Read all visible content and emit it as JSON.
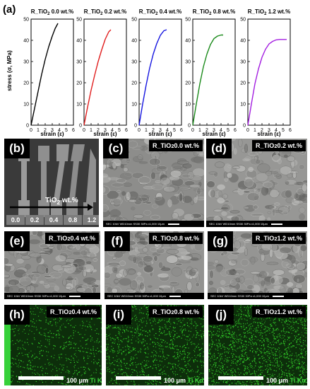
{
  "figure_label_a": "(a)",
  "chart_data": {
    "type": "line",
    "ylabel_main": "stress (σ",
    "ylabel_unit": ", MPa)",
    "xlabel": "strain (ε)",
    "xticks": [
      0,
      1,
      2,
      3,
      4,
      5,
      6
    ],
    "yticks": [
      0,
      10,
      20,
      30,
      40,
      50
    ],
    "xlim": [
      0,
      6
    ],
    "ylim": [
      0,
      50
    ],
    "grid": false,
    "series": [
      {
        "title_prefix": "R_TiO",
        "title_sub": "2",
        "title_suffix": " 0.0 wt.%",
        "color": "#000000",
        "x": [
          0,
          0.5,
          1.0,
          1.5,
          2.0,
          2.5,
          3.0,
          3.4,
          3.8
        ],
        "y": [
          0,
          8,
          16,
          24,
          31,
          37,
          42,
          45.5,
          48
        ]
      },
      {
        "title_prefix": "R_TiO",
        "title_sub": "2",
        "title_suffix": " 0.2 wt.%",
        "color": "#e01d1d",
        "x": [
          0,
          0.5,
          1.0,
          1.5,
          2.0,
          2.5,
          3.0,
          3.5,
          3.8
        ],
        "y": [
          0,
          8.5,
          16.5,
          23.5,
          30,
          35.5,
          40.5,
          44,
          45
        ]
      },
      {
        "title_prefix": "R_TiO",
        "title_sub": "2",
        "title_suffix": " 0.4 wt.%",
        "color": "#1515e0",
        "x": [
          0,
          0.5,
          1.0,
          1.5,
          2.0,
          2.5,
          3.0,
          3.5,
          3.9
        ],
        "y": [
          0,
          10,
          19,
          27,
          33.5,
          38.5,
          42.3,
          44.5,
          45
        ]
      },
      {
        "title_prefix": "R_TiO",
        "title_sub": "2",
        "title_suffix": " 0.8 wt.%",
        "color": "#1a8a1a",
        "x": [
          0,
          0.5,
          1.0,
          1.5,
          2.0,
          2.5,
          3.0,
          3.5,
          4.0,
          4.3
        ],
        "y": [
          0,
          10,
          19.5,
          27.5,
          33.5,
          38,
          40.8,
          42,
          42.5,
          42.5
        ]
      },
      {
        "title_prefix": "R_TiO",
        "title_sub": "2",
        "title_suffix": " 1.2 wt.%",
        "color": "#a31ee0",
        "x": [
          0,
          0.5,
          1.0,
          1.5,
          2.0,
          2.5,
          3.0,
          3.5,
          4.0,
          4.5,
          5.0,
          5.5
        ],
        "y": [
          0,
          10,
          19.5,
          26.5,
          32,
          35.8,
          38.3,
          39.5,
          40.2,
          40.4,
          40.4,
          40.4
        ]
      }
    ]
  },
  "photo_panel": {
    "label": "(b)",
    "tio2_text": "TiO",
    "tio2_sub": "2",
    "tio2_suffix": " wt.%",
    "samples": [
      "0.0",
      "0.2",
      "0.4",
      "0.8",
      "1.2"
    ]
  },
  "sem_panels": [
    {
      "label": "(c)",
      "title_prefix": "R_TiO",
      "title_sub": "2",
      "title_suffix": " 0.0 wt.%",
      "info": "SEC 10kV  WD10mm SS30  30Pa  x1,000   10μm",
      "base": "#8d8d8b"
    },
    {
      "label": "(d)",
      "title_prefix": "R_TiO",
      "title_sub": "2",
      "title_suffix": " 0.2 wt.%",
      "info": "SEC 10kV  WD10mm SS30  30Pa  x1,000   10μm",
      "base": "#979795"
    },
    {
      "label": "(e)",
      "title_prefix": "R_TiO",
      "title_sub": "2",
      "title_suffix": " 0.4 wt.%",
      "info": "SEC 10kV  WD10mm SS30  30Pa  x1,000   10μm",
      "base": "#8f8f8d"
    },
    {
      "label": "(f)",
      "title_prefix": "R_TiO",
      "title_sub": "2",
      "title_suffix": " 0.8 wt.%",
      "info": "SEC 10kV  WD10mm SS30  30Pa  x1,000   10μm",
      "base": "#939391"
    },
    {
      "label": "(g)",
      "title_prefix": "R_TiO",
      "title_sub": "2",
      "title_suffix": " 1.2 wt.%",
      "info": "SEC 10kV  WD10mm SS30  30Pa  x1,000   10μm",
      "base": "#959593"
    }
  ],
  "eds_panels": [
    {
      "label": "(h)",
      "title_prefix": "R_TiO",
      "title_sub": "2",
      "title_suffix": " 0.4 wt.%",
      "scale": "100 μm",
      "element": "Ti Kα1",
      "density": 0.35,
      "strip": true
    },
    {
      "label": "(i)",
      "title_prefix": "R_TiO",
      "title_sub": "2",
      "title_suffix": " 0.8 wt.%",
      "scale": "100 μm",
      "element": "Ti Kα1",
      "density": 0.55,
      "strip": false
    },
    {
      "label": "(j)",
      "title_prefix": "R_TiO",
      "title_sub": "2",
      "title_suffix": " 1.2 wt.%",
      "scale": "100 μm",
      "element": "Ti Kα1",
      "density": 0.8,
      "strip": false
    }
  ]
}
